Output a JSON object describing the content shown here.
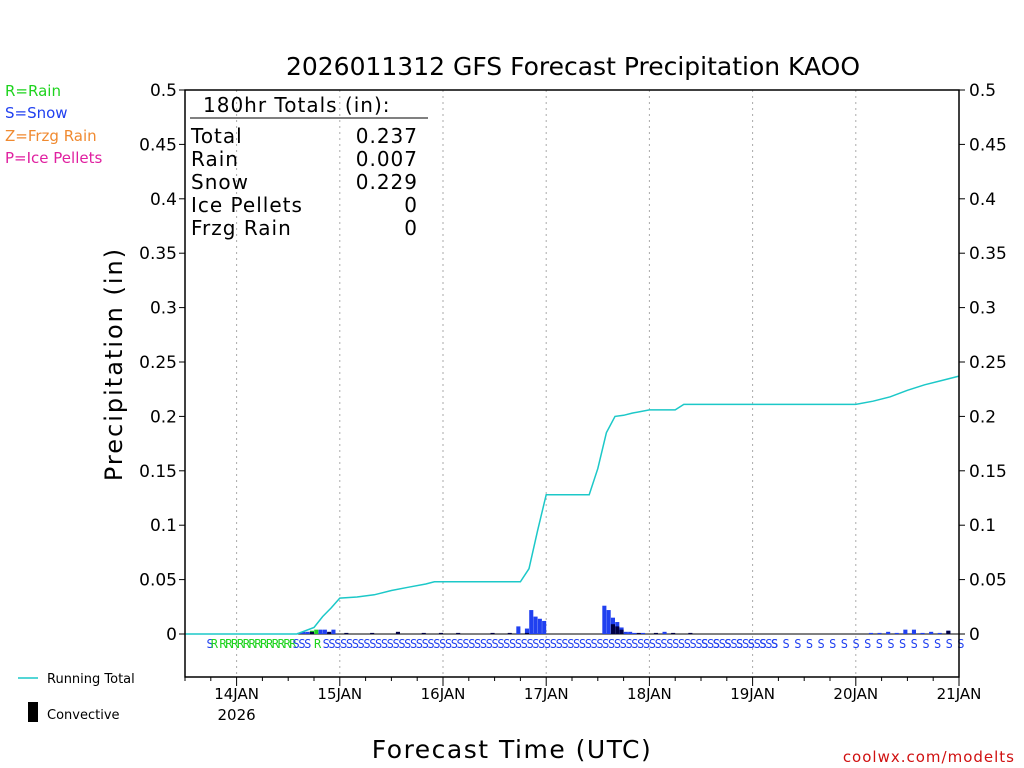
{
  "colors": {
    "rain": "#1ed31e",
    "snow": "#2040f0",
    "frzg": "#f08a30",
    "ice": "#e020a0",
    "total_line": "#1cc8c8",
    "convective": "#000044",
    "credit": "#d01010"
  },
  "legend_keys": [
    {
      "label": "R=Rain",
      "color": "#1ed31e"
    },
    {
      "label": "S=Snow",
      "color": "#2040f0"
    },
    {
      "label": "Z=Frzg Rain",
      "color": "#f08a30"
    },
    {
      "label": "P=Ice Pellets",
      "color": "#e020a0"
    }
  ],
  "totals": {
    "header": "180hr Totals (in):",
    "rows": [
      {
        "label": "Total",
        "value": "0.237"
      },
      {
        "label": "Rain",
        "value": "0.007"
      },
      {
        "label": "Snow",
        "value": "0.229"
      },
      {
        "label": "Ice Pellets",
        "value": "0"
      },
      {
        "label": "Frzg Rain",
        "value": "0"
      }
    ]
  },
  "bottom_legend": {
    "running_total": "Running Total",
    "convective": "Convective"
  },
  "credit": "coolwx.com/modelts",
  "chart_data": {
    "type": "bar",
    "title": "2026011312 GFS Forecast Precipitation KAOO",
    "xlabel": "Forecast Time (UTC)",
    "ylabel": "Precipitation (in)",
    "ylim": [
      0,
      0.5
    ],
    "xlim_hours": [
      0,
      180
    ],
    "yticks": [
      0,
      0.05,
      0.1,
      0.15,
      0.2,
      0.25,
      0.3,
      0.35,
      0.4,
      0.45,
      0.5
    ],
    "ytick_labels": [
      "0",
      "0.05",
      "0.1",
      "0.15",
      "0.2",
      "0.25",
      "0.3",
      "0.35",
      "0.4",
      "0.45",
      "0.5"
    ],
    "xticks": [
      {
        "hour": 12,
        "label": "14JAN",
        "sublabel": "2026"
      },
      {
        "hour": 36,
        "label": "15JAN"
      },
      {
        "hour": 60,
        "label": "16JAN"
      },
      {
        "hour": 84,
        "label": "17JAN"
      },
      {
        "hour": 108,
        "label": "18JAN"
      },
      {
        "hour": 132,
        "label": "19JAN"
      },
      {
        "hour": 156,
        "label": "20JAN"
      },
      {
        "hour": 180,
        "label": "21JAN"
      }
    ],
    "running_total": {
      "hours": [
        0,
        26,
        30,
        32,
        34,
        36,
        40,
        44,
        48,
        52,
        56,
        58,
        60,
        64,
        70,
        78,
        80,
        82,
        84,
        86,
        90,
        94,
        96,
        98,
        100,
        102,
        104,
        108,
        114,
        116,
        124,
        132,
        148,
        156,
        160,
        164,
        168,
        172,
        176,
        180
      ],
      "values": [
        0,
        0,
        0.006,
        0.016,
        0.024,
        0.033,
        0.034,
        0.036,
        0.04,
        0.043,
        0.046,
        0.048,
        0.048,
        0.048,
        0.048,
        0.048,
        0.06,
        0.095,
        0.128,
        0.128,
        0.128,
        0.128,
        0.152,
        0.185,
        0.2,
        0.201,
        0.203,
        0.206,
        0.206,
        0.211,
        0.211,
        0.211,
        0.211,
        0.211,
        0.214,
        0.218,
        0.224,
        0.229,
        0.233,
        0.237
      ]
    },
    "series": [
      {
        "name": "Snow",
        "color": "#2040f0",
        "hours": [
          27,
          28,
          29,
          32,
          33,
          35,
          78,
          80,
          81,
          82,
          83,
          84,
          98,
          99,
          100,
          101,
          102,
          103,
          104,
          105,
          107,
          112,
          160,
          162,
          164,
          166,
          168,
          170,
          172,
          174,
          176,
          178
        ],
        "values": [
          0.001,
          0.002,
          0.002,
          0.004,
          0.004,
          0.004,
          0.007,
          0.005,
          0.022,
          0.016,
          0.014,
          0.012,
          0.026,
          0.022,
          0.015,
          0.011,
          0.006,
          0.002,
          0.002,
          0.001,
          0.001,
          0.002,
          0.001,
          0.001,
          0.002,
          0.001,
          0.004,
          0.004,
          0.001,
          0.002,
          0.001,
          0.003
        ]
      },
      {
        "name": "Rain",
        "color": "#1ed31e",
        "hours": [
          30,
          31
        ],
        "values": [
          0.003,
          0.004
        ]
      }
    ],
    "convective": {
      "hours": [
        30,
        34,
        38,
        44,
        50,
        56,
        60,
        64,
        72,
        76,
        80,
        100,
        101,
        102,
        106,
        110,
        114,
        118,
        178
      ],
      "values": [
        0.002,
        0.002,
        0.001,
        0.001,
        0.002,
        0.001,
        0.001,
        0.001,
        0.001,
        0.001,
        0.001,
        0.009,
        0.007,
        0.004,
        0.001,
        0.001,
        0.001,
        0.001,
        0.003
      ]
    },
    "ptype_markers": [
      {
        "hour": 5,
        "text": "S",
        "color": "#2040f0"
      },
      {
        "hour": 6,
        "text": "R",
        "color": "#1ed31e"
      },
      {
        "hour": 8,
        "text": "RRRRRRRRRRRRR",
        "color": "#1ed31e"
      },
      {
        "hour": 25,
        "text": "SSS",
        "color": "#2040f0"
      },
      {
        "hour": 30,
        "text": "R",
        "color": "#1ed31e"
      },
      {
        "hour": 32,
        "text": "SSSSSSSSSSSSSSSSSSSSSSSSSSSSSSSSSSSSSSSSSSSSSSSSSSSSSSSSSSSSSSSSSSSSSSSSSSSSSS",
        "color": "#2040f0"
      },
      {
        "hour": 120,
        "text": "S S S S S S S S S S S S S S S S S S S S S S S S S S S S S S",
        "color": "#2040f0"
      }
    ]
  }
}
